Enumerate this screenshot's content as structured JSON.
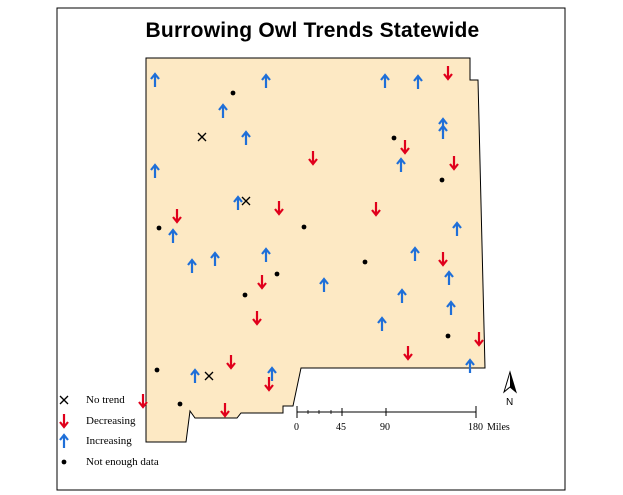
{
  "title": "Burrowing Owl Trends Statewide",
  "legend": {
    "no_trend": "No trend",
    "decreasing": "Decreasing",
    "increasing": "Increasing",
    "not_enough": "Not enough data"
  },
  "scale": {
    "t0": "0",
    "t1": "45",
    "t2": "90",
    "t3": "180",
    "unit": "Miles"
  },
  "north_label": "N",
  "colors": {
    "state_fill": "#fde9c4",
    "decreasing": "#e0001c",
    "increasing": "#1f6fd8",
    "neutral": "#000000"
  },
  "icons": {
    "increasing": "up-arrow-icon",
    "decreasing": "down-arrow-icon",
    "no_trend": "x-mark-icon",
    "not_enough": "dot-icon",
    "north": "north-arrow-icon"
  }
}
